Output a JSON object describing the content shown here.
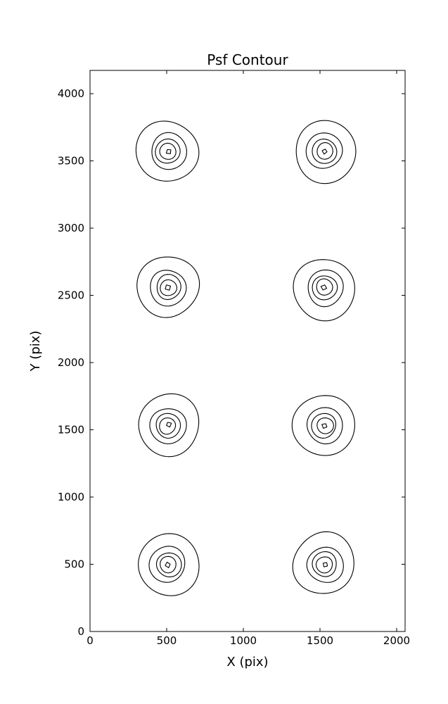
{
  "figure": {
    "background_color": "#ffffff",
    "line_color": "#000000",
    "text_color": "#000000"
  },
  "chart_data": {
    "type": "contour",
    "title": "Psf Contour",
    "xlabel": "X (pix)",
    "ylabel": "Y (pix)",
    "xlim": [
      0,
      2055
    ],
    "ylim": [
      0,
      4173
    ],
    "xticks": [
      "0",
      "500",
      "1000",
      "1500",
      "2000"
    ],
    "yticks": [
      "0",
      "500",
      "1000",
      "1500",
      "2000",
      "2500",
      "3000",
      "3500",
      "4000"
    ],
    "grid": false,
    "legend": null,
    "description": "Eight point-spread-function spots arranged in a 2x4 grid, each drawn as 5 nested closed contour levels shrinking to a tiny diamond at the core",
    "psf_spots": [
      {
        "x": 510,
        "y": 3570
      },
      {
        "x": 1530,
        "y": 3570
      },
      {
        "x": 510,
        "y": 2555
      },
      {
        "x": 1530,
        "y": 2555
      },
      {
        "x": 510,
        "y": 1535
      },
      {
        "x": 1530,
        "y": 1535
      },
      {
        "x": 510,
        "y": 500
      },
      {
        "x": 1530,
        "y": 500
      }
    ],
    "contour_level_radii_pix": [
      200,
      117,
      80,
      53,
      17
    ]
  }
}
